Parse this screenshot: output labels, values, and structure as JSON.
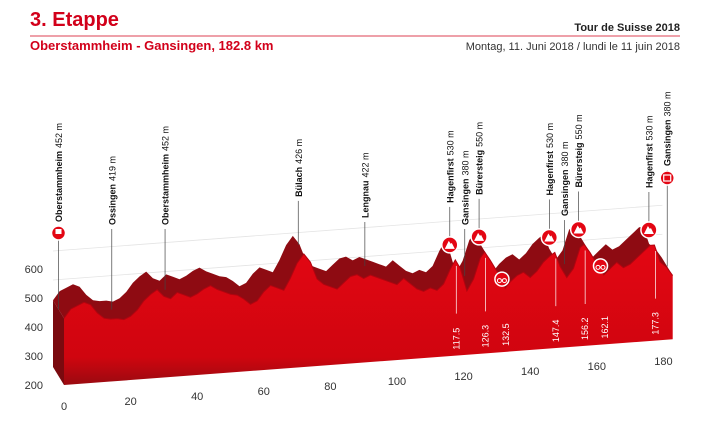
{
  "chart_data": {
    "type": "profile",
    "title": "3. Etappe",
    "subtitle": "Oberstammheim - Gansingen, 182.8 km",
    "event": "Tour de Suisse 2018",
    "date": "Montag, 11. Juni 2018 / lundi le 11 juin 2018",
    "color": "#e30613",
    "x": [
      0,
      2,
      4,
      6,
      8,
      10,
      12,
      14,
      16,
      18,
      20,
      22,
      24,
      26,
      28,
      30,
      32,
      34,
      36,
      38,
      40,
      42,
      44,
      46,
      48,
      50,
      52,
      54,
      56,
      58,
      60,
      62,
      64,
      66,
      68,
      70,
      72,
      74,
      76,
      78,
      80,
      82,
      84,
      86,
      88,
      90,
      92,
      94,
      96,
      98,
      100,
      102,
      104,
      106,
      108,
      110,
      112,
      114,
      116,
      117.5,
      119,
      121,
      123,
      125,
      126.3,
      128,
      130,
      132.5,
      134,
      136,
      138,
      140,
      142,
      144,
      146,
      147.4,
      149,
      151,
      153,
      155,
      156.2,
      158,
      160,
      162.1,
      164,
      166,
      168,
      170,
      172,
      174,
      176,
      177.3,
      179,
      181,
      182.8
    ],
    "values": [
      430,
      460,
      470,
      480,
      470,
      440,
      420,
      415,
      415,
      410,
      420,
      440,
      470,
      490,
      505,
      480,
      470,
      490,
      480,
      470,
      480,
      495,
      505,
      490,
      480,
      470,
      465,
      450,
      430,
      440,
      470,
      490,
      480,
      470,
      510,
      560,
      590,
      560,
      500,
      480,
      470,
      460,
      480,
      500,
      505,
      490,
      500,
      490,
      480,
      470,
      460,
      480,
      460,
      440,
      430,
      440,
      430,
      450,
      500,
      530,
      500,
      420,
      460,
      530,
      550,
      520,
      480,
      420,
      440,
      460,
      470,
      450,
      470,
      500,
      520,
      530,
      480,
      440,
      470,
      540,
      550,
      520,
      480,
      440,
      460,
      480,
      460,
      470,
      490,
      510,
      530,
      530,
      470,
      450,
      420
    ],
    "xlim": [
      0,
      183
    ],
    "xticks": [
      0,
      20,
      40,
      60,
      80,
      100,
      120,
      140,
      160,
      180
    ],
    "ylim": [
      200,
      700
    ],
    "yticks": [
      200,
      300,
      400,
      500,
      600
    ],
    "waypoints": [
      {
        "name": "Oberstammheim",
        "elevation": 452,
        "elevation_label": "452 m",
        "km": 0
      },
      {
        "name": "Ossingen",
        "elevation": 419,
        "elevation_label": "419 m",
        "km": 16
      },
      {
        "name": "Oberstammheim",
        "elevation": 452,
        "elevation_label": "452 m",
        "km": 32
      },
      {
        "name": "Bülach",
        "elevation": 426,
        "elevation_label": "426 m",
        "km": 72
      },
      {
        "name": "Lengnau",
        "elevation": 422,
        "elevation_label": "422 m",
        "km": 92
      },
      {
        "name": "Hagenfirst",
        "elevation": 530,
        "elevation_label": "530 m",
        "km": 117.5
      },
      {
        "name": "Gansingen",
        "elevation": 380,
        "elevation_label": "380 m",
        "km": 122
      },
      {
        "name": "Bürersteig",
        "elevation": 550,
        "elevation_label": "550 m",
        "km": 126.3
      },
      {
        "name": "Hagenfirst",
        "elevation": 530,
        "elevation_label": "530 m",
        "km": 147.4
      },
      {
        "name": "Gansingen",
        "elevation": 380,
        "elevation_label": "380 m",
        "km": 152
      },
      {
        "name": "Bürersteig",
        "elevation": 550,
        "elevation_label": "550 m",
        "km": 156.2
      },
      {
        "name": "Hagenfirst",
        "elevation": 530,
        "elevation_label": "530 m",
        "km": 177.3
      },
      {
        "name": "Gansingen",
        "elevation": 380,
        "elevation_label": "380 m",
        "km": 182.8
      }
    ],
    "climbs": [
      117.5,
      126.3,
      147.4,
      156.2,
      177.3
    ],
    "sprints": [
      132.5,
      162.1
    ]
  }
}
